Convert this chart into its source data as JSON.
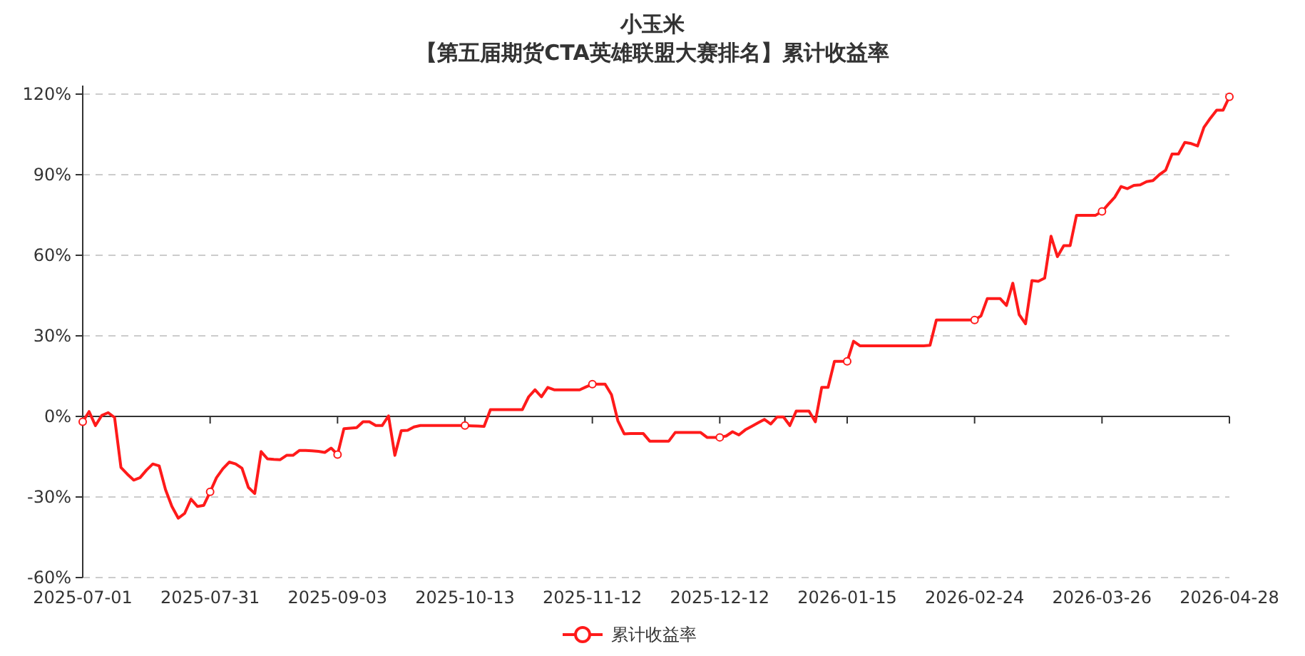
{
  "chart_data": {
    "type": "line",
    "title": "小玉米",
    "subtitle": "【第五届期货CTA英雄联盟大赛排名】累计收益率",
    "categories": [
      "2025-07-01",
      null,
      null,
      null,
      null,
      null,
      null,
      null,
      null,
      null,
      null,
      null,
      null,
      null,
      null,
      null,
      null,
      null,
      null,
      null,
      "2025-07-31",
      null,
      null,
      null,
      null,
      null,
      null,
      null,
      null,
      null,
      null,
      null,
      null,
      null,
      null,
      null,
      null,
      null,
      null,
      null,
      "2025-09-03",
      null,
      null,
      null,
      null,
      null,
      null,
      null,
      null,
      null,
      null,
      null,
      null,
      null,
      null,
      null,
      null,
      null,
      null,
      null,
      "2025-10-13",
      null,
      null,
      null,
      null,
      null,
      null,
      null,
      null,
      null,
      null,
      null,
      null,
      null,
      null,
      null,
      null,
      null,
      null,
      null,
      "2025-11-12",
      null,
      null,
      null,
      null,
      null,
      null,
      null,
      null,
      null,
      null,
      null,
      null,
      null,
      null,
      null,
      null,
      null,
      null,
      null,
      "2025-12-12",
      null,
      null,
      null,
      null,
      null,
      null,
      null,
      null,
      null,
      null,
      null,
      null,
      null,
      null,
      null,
      null,
      null,
      null,
      null,
      "2026-01-15",
      null,
      null,
      null,
      null,
      null,
      null,
      null,
      null,
      null,
      null,
      null,
      null,
      null,
      null,
      null,
      null,
      null,
      null,
      null,
      "2026-02-24",
      null,
      null,
      null,
      null,
      null,
      null,
      null,
      null,
      null,
      null,
      null,
      null,
      null,
      null,
      null,
      null,
      null,
      null,
      null,
      "2026-03-26",
      null,
      null,
      null,
      null,
      null,
      null,
      null,
      null,
      null,
      null,
      null,
      null,
      null,
      null,
      null,
      null,
      null,
      null,
      null,
      "2026-04-28"
    ],
    "ylim": [
      -60,
      120
    ],
    "yticks": [
      {
        "value": -60,
        "label": "-60%"
      },
      {
        "value": -30,
        "label": "-30%"
      },
      {
        "value": 0,
        "label": "0%"
      },
      {
        "value": 30,
        "label": "30%"
      },
      {
        "value": 60,
        "label": "60%"
      },
      {
        "value": 90,
        "label": "90%"
      },
      {
        "value": 120,
        "label": "120%"
      }
    ],
    "grid": "y",
    "legend": "bottom",
    "line_style": "solid",
    "series": [
      {
        "name": "累计收益率",
        "color": "#ff1a1a",
        "values": [
          -2.0,
          1.8,
          -3.4,
          0.4,
          1.4,
          -0.4,
          -19.0,
          -21.5,
          -23.7,
          -22.8,
          -20.0,
          -17.7,
          -18.4,
          -27.3,
          -33.5,
          -37.9,
          -36.1,
          -30.8,
          -33.5,
          -33.1,
          -28.1,
          -22.8,
          -19.5,
          -17.0,
          -17.7,
          -19.3,
          -26.4,
          -28.7,
          -13.1,
          -15.8,
          -16.0,
          -16.1,
          -14.5,
          -14.5,
          -12.7,
          -12.7,
          -12.8,
          -13.0,
          -13.4,
          -11.8,
          -14.2,
          -4.6,
          -4.4,
          -4.2,
          -2.0,
          -2.0,
          -3.4,
          -3.4,
          0.2,
          -14.5,
          -5.3,
          -5.2,
          -3.9,
          -3.4,
          -3.4,
          -3.4,
          -3.4,
          -3.4,
          -3.4,
          -3.4,
          -3.4,
          -3.5,
          -3.6,
          -3.7,
          2.5,
          2.5,
          2.5,
          2.5,
          2.5,
          2.5,
          7.3,
          9.9,
          7.3,
          10.8,
          9.9,
          9.9,
          9.9,
          9.9,
          9.9,
          11.0,
          12.0,
          12.0,
          12.0,
          8.1,
          -1.6,
          -6.5,
          -6.4,
          -6.4,
          -6.4,
          -9.2,
          -9.2,
          -9.2,
          -9.2,
          -6.0,
          -6.0,
          -6.0,
          -6.0,
          -6.0,
          -7.8,
          -7.8,
          -7.8,
          -7.3,
          -5.7,
          -6.9,
          -5.0,
          -3.7,
          -2.4,
          -1.1,
          -2.8,
          -0.2,
          -0.2,
          -3.4,
          2.0,
          2.0,
          2.0,
          -2.0,
          10.8,
          10.8,
          20.5,
          20.5,
          20.5,
          28.0,
          26.3,
          26.3,
          26.3,
          26.3,
          26.3,
          26.3,
          26.3,
          26.3,
          26.3,
          26.3,
          26.3,
          26.5,
          35.9,
          35.9,
          35.9,
          35.9,
          35.9,
          35.9,
          35.9,
          37.4,
          43.9,
          43.9,
          43.9,
          41.3,
          49.6,
          37.9,
          34.5,
          50.6,
          50.3,
          51.5,
          67.1,
          59.5,
          63.6,
          63.6,
          74.9,
          74.9,
          74.9,
          74.9,
          76.3,
          79.0,
          81.6,
          85.6,
          84.8,
          86.0,
          86.2,
          87.4,
          87.8,
          90.0,
          91.7,
          97.7,
          97.7,
          102.0,
          101.6,
          100.7,
          107.6,
          111.0,
          114.0,
          114.0,
          119.0
        ]
      }
    ]
  }
}
